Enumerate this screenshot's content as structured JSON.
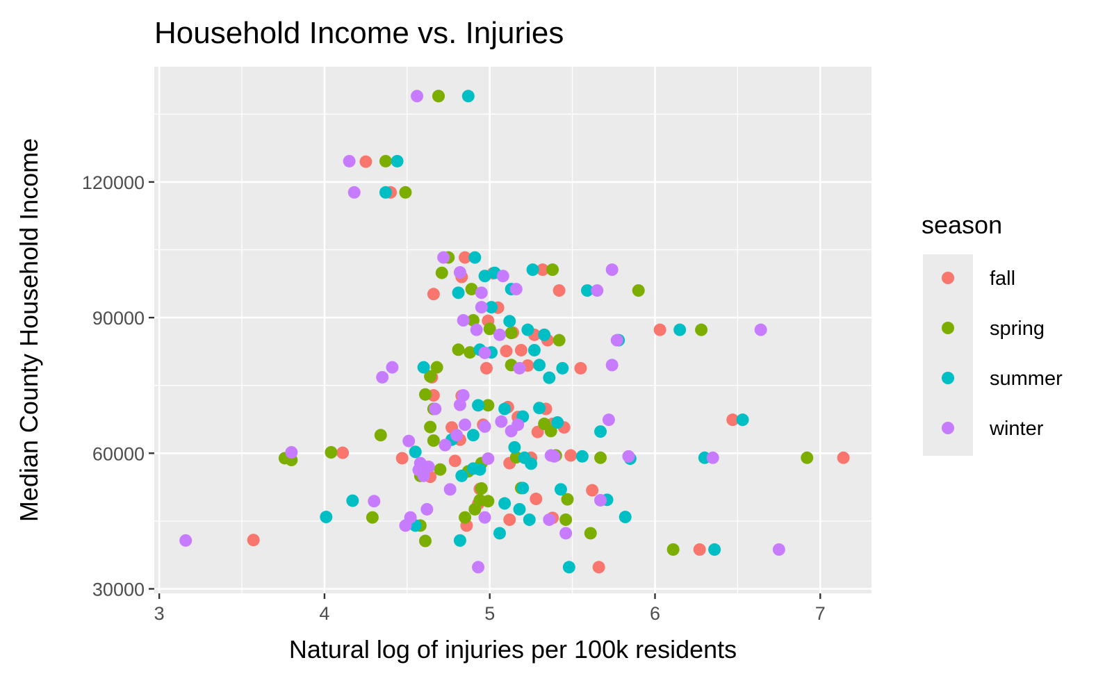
{
  "chart_data": {
    "type": "scatter",
    "title": "Household Income vs. Injuries",
    "xlabel": "Natural log of injuries per 100k residents",
    "ylabel": "Median County Household Income",
    "xlim": [
      2.97,
      7.31
    ],
    "ylim": [
      29000,
      145500
    ],
    "x_ticks": [
      3,
      4,
      5,
      6,
      7
    ],
    "y_ticks": [
      30000,
      60000,
      90000,
      120000
    ],
    "x_tick_labels": [
      "3",
      "4",
      "5",
      "6",
      "7"
    ],
    "y_tick_labels": [
      "30000",
      "60000",
      "90000",
      "120000"
    ],
    "grid": true,
    "legend": {
      "title": "season",
      "position": "right",
      "entries": [
        {
          "name": "fall",
          "color": "#F8766D"
        },
        {
          "name": "spring",
          "color": "#7CAE00"
        },
        {
          "name": "summer",
          "color": "#00BFC4"
        },
        {
          "name": "winter",
          "color": "#C77CFF"
        }
      ]
    },
    "series": [
      {
        "name": "fall",
        "color": "#F8766D",
        "points": [
          [
            4.69,
            139000
          ],
          [
            4.25,
            124500
          ],
          [
            4.4,
            117700
          ],
          [
            4.85,
            103300
          ],
          [
            4.83,
            99000
          ],
          [
            5.02,
            99800
          ],
          [
            5.32,
            100600
          ],
          [
            4.66,
            95200
          ],
          [
            5.42,
            96000
          ],
          [
            4.99,
            89300
          ],
          [
            5.05,
            92200
          ],
          [
            5.1,
            82600
          ],
          [
            5.19,
            82800
          ],
          [
            5.14,
            86700
          ],
          [
            5.27,
            86200
          ],
          [
            5.35,
            85000
          ],
          [
            6.03,
            87300
          ],
          [
            5.23,
            79400
          ],
          [
            5.55,
            78800
          ],
          [
            4.98,
            78800
          ],
          [
            4.65,
            76800
          ],
          [
            4.66,
            72800
          ],
          [
            4.83,
            72700
          ],
          [
            5.11,
            70200
          ],
          [
            5.34,
            69800
          ],
          [
            5.17,
            68000
          ],
          [
            5.38,
            66500
          ],
          [
            4.96,
            66300
          ],
          [
            4.77,
            65700
          ],
          [
            5.29,
            64700
          ],
          [
            5.45,
            65700
          ],
          [
            6.47,
            67400
          ],
          [
            4.82,
            63000
          ],
          [
            4.11,
            60100
          ],
          [
            4.47,
            58900
          ],
          [
            4.79,
            58300
          ],
          [
            5.12,
            57800
          ],
          [
            5.49,
            59500
          ],
          [
            5.25,
            59000
          ],
          [
            4.64,
            54800
          ],
          [
            4.94,
            52100
          ],
          [
            5.62,
            51800
          ],
          [
            5.28,
            49900
          ],
          [
            4.93,
            48800
          ],
          [
            5.12,
            45300
          ],
          [
            4.86,
            44000
          ],
          [
            5.38,
            45700
          ],
          [
            3.57,
            40800
          ],
          [
            6.27,
            38700
          ],
          [
            5.66,
            34800
          ],
          [
            7.14,
            59000
          ]
        ]
      },
      {
        "name": "spring",
        "color": "#7CAE00",
        "points": [
          [
            4.69,
            139000
          ],
          [
            4.37,
            124600
          ],
          [
            4.49,
            117700
          ],
          [
            4.75,
            103300
          ],
          [
            4.71,
            99900
          ],
          [
            5.38,
            100600
          ],
          [
            4.89,
            96300
          ],
          [
            5.9,
            96000
          ],
          [
            4.9,
            89400
          ],
          [
            5.0,
            87500
          ],
          [
            5.13,
            86600
          ],
          [
            5.42,
            85000
          ],
          [
            6.28,
            87300
          ],
          [
            4.81,
            82900
          ],
          [
            4.88,
            82300
          ],
          [
            4.68,
            79000
          ],
          [
            5.13,
            79500
          ],
          [
            4.64,
            77000
          ],
          [
            4.61,
            73000
          ],
          [
            4.99,
            70600
          ],
          [
            4.66,
            69800
          ],
          [
            5.33,
            66500
          ],
          [
            5.37,
            64900
          ],
          [
            4.64,
            65800
          ],
          [
            4.66,
            62800
          ],
          [
            4.34,
            64000
          ],
          [
            4.04,
            60200
          ],
          [
            3.76,
            58900
          ],
          [
            3.8,
            58500
          ],
          [
            5.16,
            59100
          ],
          [
            5.4,
            59500
          ],
          [
            5.67,
            59000
          ],
          [
            4.95,
            57800
          ],
          [
            4.7,
            56400
          ],
          [
            4.87,
            56000
          ],
          [
            4.58,
            55000
          ],
          [
            4.95,
            52200
          ],
          [
            5.19,
            52300
          ],
          [
            5.47,
            49800
          ],
          [
            4.94,
            49600
          ],
          [
            4.99,
            49400
          ],
          [
            4.91,
            47600
          ],
          [
            4.85,
            45800
          ],
          [
            4.29,
            45800
          ],
          [
            5.46,
            45300
          ],
          [
            4.58,
            44000
          ],
          [
            5.61,
            42300
          ],
          [
            4.61,
            40600
          ],
          [
            6.11,
            38700
          ],
          [
            6.92,
            59000
          ]
        ]
      },
      {
        "name": "summer",
        "color": "#00BFC4",
        "points": [
          [
            4.87,
            139000
          ],
          [
            4.44,
            124600
          ],
          [
            4.37,
            117700
          ],
          [
            4.91,
            103300
          ],
          [
            4.97,
            99200
          ],
          [
            5.03,
            99900
          ],
          [
            5.26,
            100600
          ],
          [
            4.81,
            95500
          ],
          [
            5.13,
            96300
          ],
          [
            5.59,
            96000
          ],
          [
            5.01,
            92300
          ],
          [
            5.12,
            89200
          ],
          [
            5.23,
            87300
          ],
          [
            5.33,
            86200
          ],
          [
            6.15,
            87300
          ],
          [
            5.78,
            85000
          ],
          [
            4.94,
            82900
          ],
          [
            5.01,
            82300
          ],
          [
            5.27,
            82800
          ],
          [
            4.6,
            79000
          ],
          [
            5.3,
            79500
          ],
          [
            5.44,
            78800
          ],
          [
            5.36,
            76700
          ],
          [
            4.93,
            70600
          ],
          [
            5.09,
            69800
          ],
          [
            5.3,
            70000
          ],
          [
            5.2,
            68100
          ],
          [
            5.41,
            66800
          ],
          [
            5.67,
            64800
          ],
          [
            6.53,
            67400
          ],
          [
            4.9,
            64000
          ],
          [
            4.77,
            63000
          ],
          [
            4.55,
            60300
          ],
          [
            5.15,
            61300
          ],
          [
            5.21,
            59000
          ],
          [
            5.56,
            59300
          ],
          [
            5.85,
            58800
          ],
          [
            6.3,
            59000
          ],
          [
            5.25,
            57700
          ],
          [
            4.9,
            56600
          ],
          [
            4.83,
            55000
          ],
          [
            4.94,
            56400
          ],
          [
            5.43,
            52000
          ],
          [
            5.2,
            52300
          ],
          [
            5.71,
            49700
          ],
          [
            5.09,
            48900
          ],
          [
            5.18,
            47600
          ],
          [
            4.17,
            49500
          ],
          [
            4.01,
            45900
          ],
          [
            5.24,
            45300
          ],
          [
            5.82,
            45900
          ],
          [
            4.55,
            44000
          ],
          [
            5.06,
            42300
          ],
          [
            4.82,
            40700
          ],
          [
            6.36,
            38700
          ],
          [
            5.48,
            34800
          ]
        ]
      },
      {
        "name": "winter",
        "color": "#C77CFF",
        "points": [
          [
            4.56,
            139000
          ],
          [
            4.15,
            124600
          ],
          [
            4.18,
            117700
          ],
          [
            4.72,
            103300
          ],
          [
            5.08,
            99200
          ],
          [
            4.82,
            100000
          ],
          [
            5.74,
            100600
          ],
          [
            4.95,
            95500
          ],
          [
            5.16,
            96300
          ],
          [
            5.65,
            96000
          ],
          [
            4.95,
            92300
          ],
          [
            4.84,
            89400
          ],
          [
            4.92,
            87300
          ],
          [
            5.06,
            86200
          ],
          [
            6.64,
            87300
          ],
          [
            5.77,
            85000
          ],
          [
            4.97,
            82200
          ],
          [
            5.18,
            78800
          ],
          [
            5.74,
            79500
          ],
          [
            4.41,
            79000
          ],
          [
            4.35,
            76800
          ],
          [
            4.84,
            72800
          ],
          [
            4.82,
            70700
          ],
          [
            4.67,
            69800
          ],
          [
            5.72,
            67400
          ],
          [
            5.07,
            67000
          ],
          [
            5.17,
            66300
          ],
          [
            4.85,
            66300
          ],
          [
            4.97,
            65900
          ],
          [
            5.13,
            64900
          ],
          [
            4.8,
            64000
          ],
          [
            4.73,
            61800
          ],
          [
            4.51,
            62700
          ],
          [
            3.8,
            60200
          ],
          [
            5.37,
            59500
          ],
          [
            5.39,
            59300
          ],
          [
            5.84,
            59300
          ],
          [
            6.35,
            59000
          ],
          [
            4.99,
            58800
          ],
          [
            4.58,
            57800
          ],
          [
            4.63,
            57000
          ],
          [
            4.57,
            56300
          ],
          [
            4.6,
            55000
          ],
          [
            4.76,
            52000
          ],
          [
            5.67,
            49600
          ],
          [
            4.3,
            49400
          ],
          [
            4.62,
            47600
          ],
          [
            4.97,
            45800
          ],
          [
            5.36,
            45300
          ],
          [
            4.52,
            45800
          ],
          [
            4.49,
            44000
          ],
          [
            5.46,
            42300
          ],
          [
            3.16,
            40700
          ],
          [
            6.75,
            38700
          ],
          [
            4.93,
            34800
          ]
        ]
      }
    ]
  }
}
